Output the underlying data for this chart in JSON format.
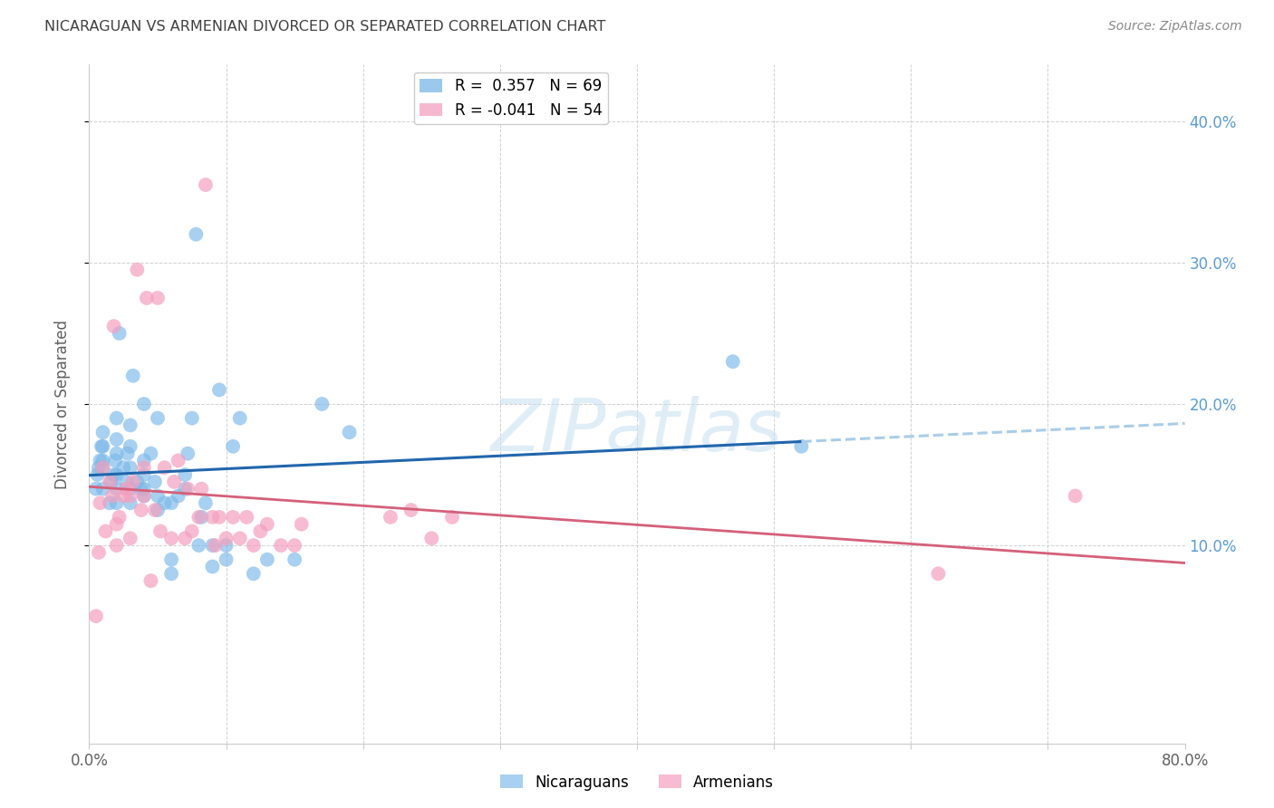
{
  "title": "NICARAGUAN VS ARMENIAN DIVORCED OR SEPARATED CORRELATION CHART",
  "source": "Source: ZipAtlas.com",
  "ylabel": "Divorced or Separated",
  "xlim": [
    0.0,
    0.8
  ],
  "ylim": [
    -0.04,
    0.44
  ],
  "watermark_text": "ZIPatlas",
  "watermark_style": "italic",
  "legend_label_blue": "R =  0.357   N = 69",
  "legend_label_pink": "R = -0.041   N = 54",
  "legend_bottom_blue": "Nicaraguans",
  "legend_bottom_pink": "Armenians",
  "nicaraguan_color": "#7ab8e8",
  "armenian_color": "#f4a0be",
  "blue_line_color": "#2166ac",
  "blue_dash_color": "#aacde8",
  "pink_line_color": "#d4607a",
  "grid_color": "#cccccc",
  "background_color": "#ffffff",
  "title_color": "#404040",
  "source_color": "#888888",
  "axis_label_color": "#606060",
  "right_tick_color": "#5b9bd5",
  "x_tick_labels": [
    "0.0%",
    "",
    "",
    "",
    "",
    "",
    "",
    "",
    "80.0%"
  ],
  "x_tick_vals": [
    0.0,
    0.1,
    0.2,
    0.3,
    0.4,
    0.5,
    0.6,
    0.7,
    0.8
  ],
  "y_tick_vals": [
    0.1,
    0.2,
    0.3,
    0.4
  ],
  "y_tick_labels": [
    "10.0%",
    "20.0%",
    "30.0%",
    "40.0%"
  ],
  "nicaraguan_x": [
    0.005,
    0.006,
    0.007,
    0.008,
    0.009,
    0.01,
    0.01,
    0.01,
    0.01,
    0.01,
    0.015,
    0.016,
    0.018,
    0.019,
    0.02,
    0.02,
    0.02,
    0.02,
    0.02,
    0.02,
    0.022,
    0.025,
    0.027,
    0.028,
    0.03,
    0.03,
    0.03,
    0.03,
    0.03,
    0.032,
    0.035,
    0.038,
    0.04,
    0.04,
    0.04,
    0.04,
    0.04,
    0.045,
    0.048,
    0.05,
    0.05,
    0.05,
    0.055,
    0.06,
    0.06,
    0.06,
    0.065,
    0.07,
    0.07,
    0.072,
    0.075,
    0.078,
    0.08,
    0.082,
    0.085,
    0.09,
    0.09,
    0.095,
    0.1,
    0.1,
    0.105,
    0.11,
    0.12,
    0.13,
    0.15,
    0.17,
    0.19,
    0.47,
    0.52
  ],
  "nicaraguan_y": [
    0.14,
    0.15,
    0.155,
    0.16,
    0.17,
    0.14,
    0.155,
    0.16,
    0.17,
    0.18,
    0.13,
    0.145,
    0.15,
    0.16,
    0.13,
    0.14,
    0.15,
    0.165,
    0.175,
    0.19,
    0.25,
    0.155,
    0.145,
    0.165,
    0.13,
    0.14,
    0.155,
    0.17,
    0.185,
    0.22,
    0.145,
    0.14,
    0.135,
    0.14,
    0.15,
    0.16,
    0.2,
    0.165,
    0.145,
    0.125,
    0.135,
    0.19,
    0.13,
    0.08,
    0.09,
    0.13,
    0.135,
    0.14,
    0.15,
    0.165,
    0.19,
    0.32,
    0.1,
    0.12,
    0.13,
    0.085,
    0.1,
    0.21,
    0.09,
    0.1,
    0.17,
    0.19,
    0.08,
    0.09,
    0.09,
    0.2,
    0.18,
    0.23,
    0.17
  ],
  "armenian_x": [
    0.005,
    0.007,
    0.008,
    0.01,
    0.012,
    0.015,
    0.017,
    0.018,
    0.02,
    0.02,
    0.022,
    0.025,
    0.027,
    0.03,
    0.03,
    0.032,
    0.035,
    0.038,
    0.04,
    0.04,
    0.042,
    0.045,
    0.048,
    0.05,
    0.052,
    0.055,
    0.06,
    0.062,
    0.065,
    0.07,
    0.072,
    0.075,
    0.08,
    0.082,
    0.085,
    0.09,
    0.092,
    0.095,
    0.1,
    0.105,
    0.11,
    0.115,
    0.12,
    0.125,
    0.13,
    0.14,
    0.15,
    0.155,
    0.22,
    0.235,
    0.25,
    0.265,
    0.62,
    0.72
  ],
  "armenian_y": [
    0.05,
    0.095,
    0.13,
    0.155,
    0.11,
    0.145,
    0.135,
    0.255,
    0.1,
    0.115,
    0.12,
    0.135,
    0.14,
    0.105,
    0.135,
    0.145,
    0.295,
    0.125,
    0.135,
    0.155,
    0.275,
    0.075,
    0.125,
    0.275,
    0.11,
    0.155,
    0.105,
    0.145,
    0.16,
    0.105,
    0.14,
    0.11,
    0.12,
    0.14,
    0.355,
    0.12,
    0.1,
    0.12,
    0.105,
    0.12,
    0.105,
    0.12,
    0.1,
    0.11,
    0.115,
    0.1,
    0.1,
    0.115,
    0.12,
    0.125,
    0.105,
    0.12,
    0.08,
    0.135
  ]
}
